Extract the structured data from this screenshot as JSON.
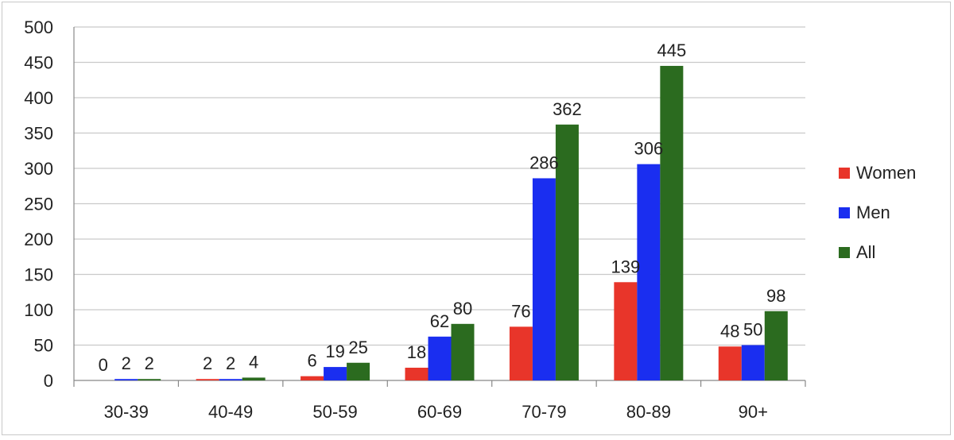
{
  "chart_data": {
    "type": "bar",
    "title": "",
    "xlabel": "",
    "ylabel": "",
    "ylim": [
      0,
      500
    ],
    "yticks": [
      0,
      50,
      100,
      150,
      200,
      250,
      300,
      350,
      400,
      450,
      500
    ],
    "grid": true,
    "legend_position": "right",
    "categories": [
      "30-39",
      "40-49",
      "50-59",
      "60-69",
      "70-79",
      "80-89",
      "90+"
    ],
    "series": [
      {
        "name": "Women",
        "color": "#e8352a",
        "values": [
          0,
          2,
          6,
          18,
          76,
          139,
          48
        ]
      },
      {
        "name": "Men",
        "color": "#1a2ef0",
        "values": [
          2,
          2,
          19,
          62,
          286,
          306,
          50
        ]
      },
      {
        "name": "All",
        "color": "#2b6b1f",
        "values": [
          2,
          4,
          25,
          80,
          362,
          445,
          98
        ]
      }
    ]
  }
}
